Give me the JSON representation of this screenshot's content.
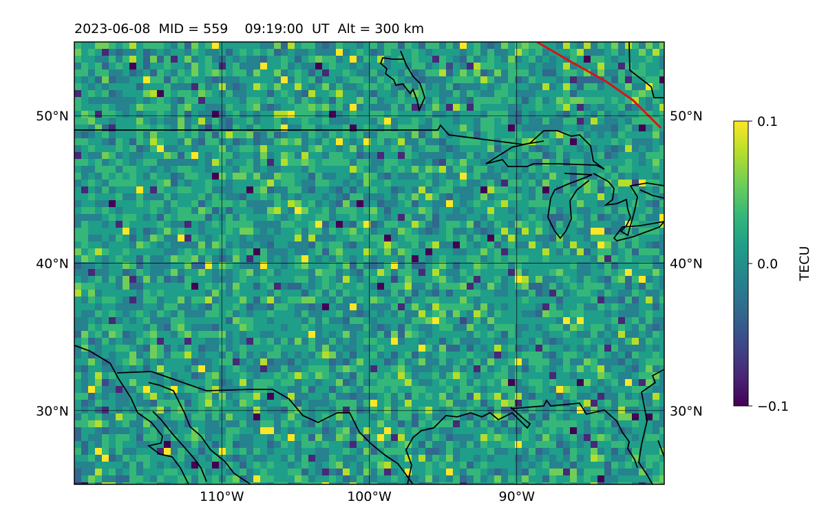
{
  "title": "2023-06-08  MID = 559    09:19:00  UT  Alt = 300 km",
  "map": {
    "lon_range": [
      -120,
      -80
    ],
    "lat_range": [
      25,
      55
    ],
    "lon_ticks": [
      {
        "value": -110,
        "label": "110°W"
      },
      {
        "value": -100,
        "label": "100°W"
      },
      {
        "value": -90,
        "label": "90°W"
      }
    ],
    "lat_ticks": [
      {
        "value": 30,
        "label": "30°N"
      },
      {
        "value": 40,
        "label": "40°N"
      },
      {
        "value": 50,
        "label": "50°N"
      }
    ],
    "field": "TEC perturbation (gridded, viridis)",
    "coastline_color": "#000000",
    "terminator_color": "#e01010"
  },
  "colorbar": {
    "label": "TECU",
    "min": -0.1,
    "max": 0.1,
    "ticks": [
      {
        "value": 0.1,
        "label": "0.1"
      },
      {
        "value": 0.0,
        "label": "0.0"
      },
      {
        "value": -0.1,
        "label": "−0.1"
      }
    ],
    "colormap": [
      "#440154",
      "#482878",
      "#3e4989",
      "#31688e",
      "#26828e",
      "#1f9e89",
      "#35b779",
      "#6ece58",
      "#b5de2b",
      "#fde725"
    ]
  }
}
